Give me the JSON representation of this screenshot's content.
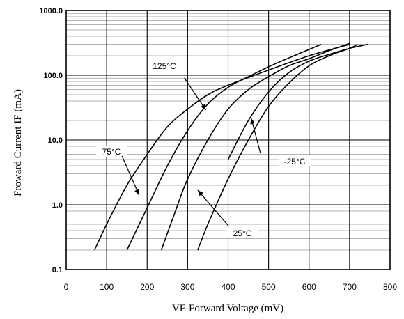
{
  "chart_data": {
    "type": "line",
    "xlabel": "VF-Forward Voltage (mV)",
    "ylabel": "Froward Current IF (mA)",
    "xlim": [
      0,
      800
    ],
    "ylim": [
      0.1,
      1000
    ],
    "yscale": "log",
    "x_ticks": [
      "0",
      "100",
      "200",
      "300",
      "400",
      "500",
      "600",
      "700",
      "800"
    ],
    "y_ticks": [
      "0.1",
      "1.0",
      "10.0",
      "100.0",
      "1000.0"
    ],
    "grid": true,
    "series": [
      {
        "name": "75°C",
        "x": [
          70,
          100,
          150,
          200,
          250,
          300,
          350,
          400,
          500,
          600,
          700
        ],
        "y": [
          0.2,
          0.5,
          2,
          6,
          16,
          30,
          50,
          70,
          120,
          200,
          300
        ]
      },
      {
        "name": "125°C",
        "x": [
          150,
          200,
          250,
          300,
          350,
          400,
          450,
          500,
          550,
          600,
          630
        ],
        "y": [
          0.2,
          0.9,
          4,
          14,
          36,
          65,
          95,
          135,
          185,
          250,
          300
        ]
      },
      {
        "name": "25°C",
        "x": [
          235,
          270,
          300,
          350,
          400,
          450,
          500,
          550,
          600,
          650,
          700
        ],
        "y": [
          0.2,
          0.8,
          2.5,
          10,
          30,
          60,
          95,
          140,
          180,
          240,
          310
        ]
      },
      {
        "name": "",
        "x": [
          325,
          350,
          400,
          450,
          500,
          550,
          600,
          650,
          700,
          720
        ],
        "y": [
          0.2,
          0.5,
          2.5,
          10,
          33,
          75,
          140,
          200,
          260,
          300
        ]
      },
      {
        "name": "-25°C",
        "x": [
          400,
          450,
          500,
          550,
          600,
          650,
          700,
          745
        ],
        "y": [
          5,
          20,
          55,
          110,
          165,
          210,
          260,
          300
        ]
      }
    ],
    "annotations": [
      {
        "text": "125°C"
      },
      {
        "text": "75°C"
      },
      {
        "text": "-25°C"
      },
      {
        "text": "25°C"
      }
    ]
  }
}
